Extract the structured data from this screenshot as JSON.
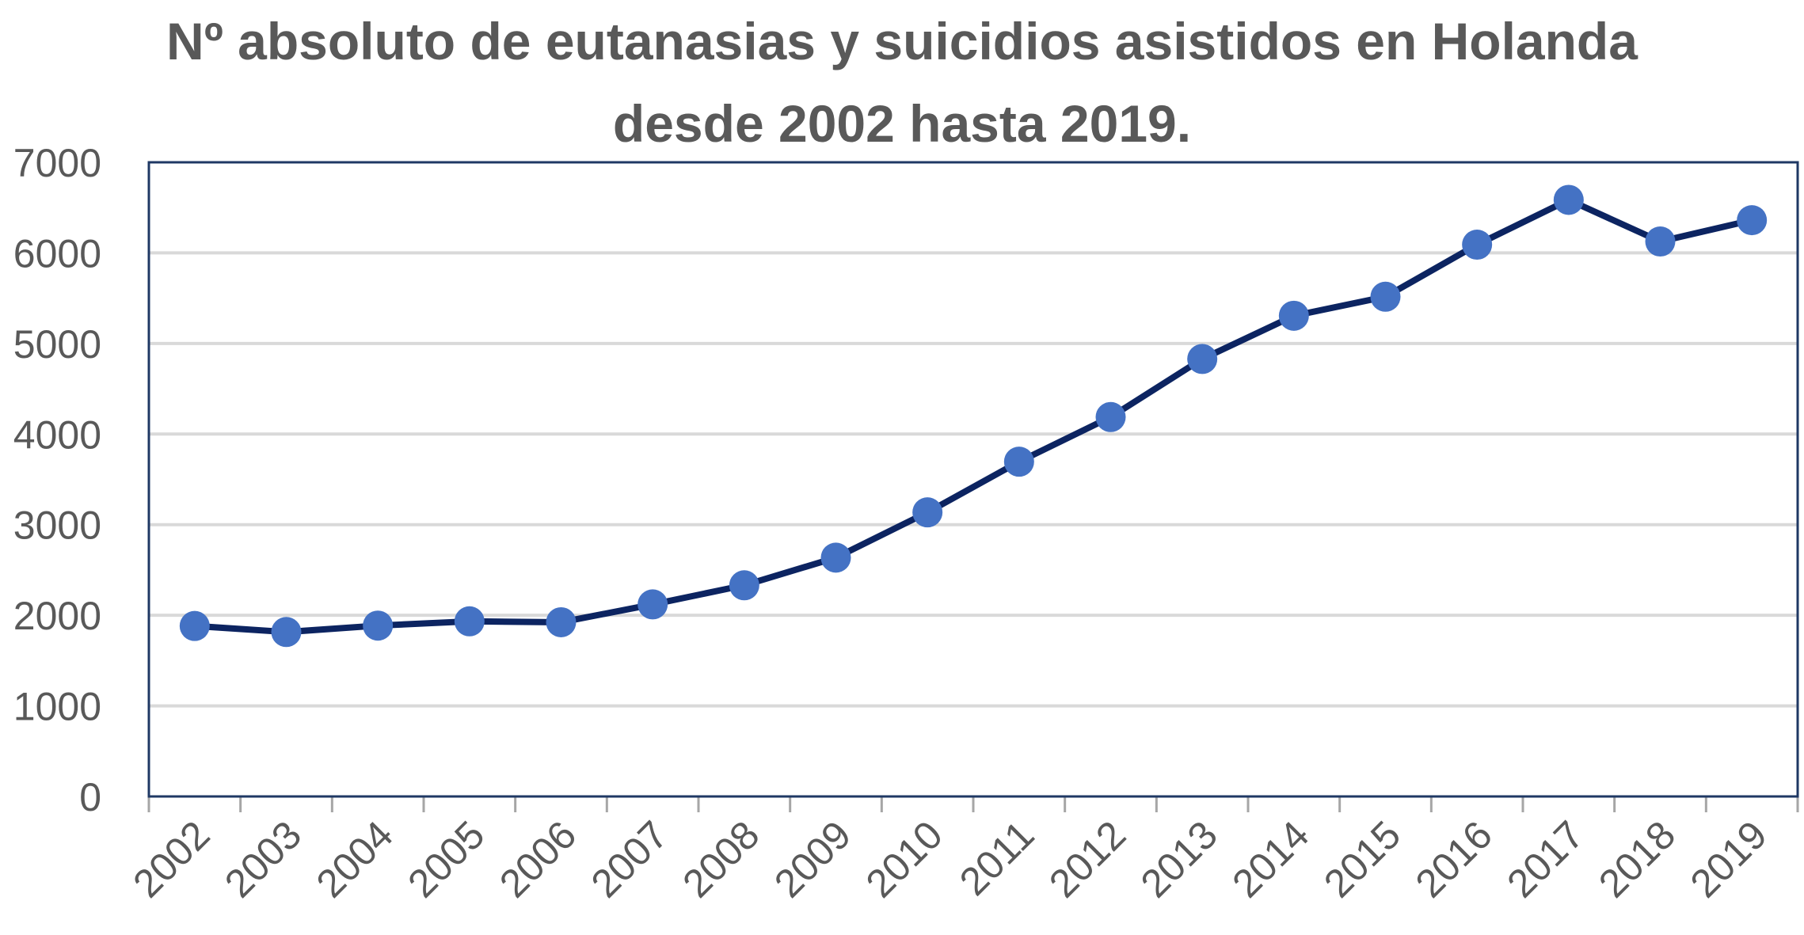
{
  "chart_data": {
    "type": "line",
    "title_lines": [
      "Nº absoluto de eutanasias y suicidios asistidos en Holanda",
      "desde 2002 hasta 2019."
    ],
    "xlabel": "",
    "ylabel": "",
    "categories": [
      "2002",
      "2003",
      "2004",
      "2005",
      "2006",
      "2007",
      "2008",
      "2009",
      "2010",
      "2011",
      "2012",
      "2013",
      "2014",
      "2015",
      "2016",
      "2017",
      "2018",
      "2019"
    ],
    "series": [
      {
        "values": [
          1882,
          1815,
          1886,
          1933,
          1923,
          2120,
          2331,
          2636,
          3136,
          3695,
          4188,
          4829,
          5306,
          5516,
          6091,
          6585,
          6126,
          6361
        ]
      }
    ],
    "ylim": [
      0,
      7000
    ],
    "yticks": [
      "0",
      "1000",
      "2000",
      "3000",
      "4000",
      "5000",
      "6000",
      "7000"
    ],
    "grid": true,
    "legend": "none",
    "colors": {
      "line": "#0c2461",
      "marker": "#4472c4",
      "grid": "#d9d9d9",
      "frame": "#1f3864",
      "text": "#595959"
    }
  }
}
